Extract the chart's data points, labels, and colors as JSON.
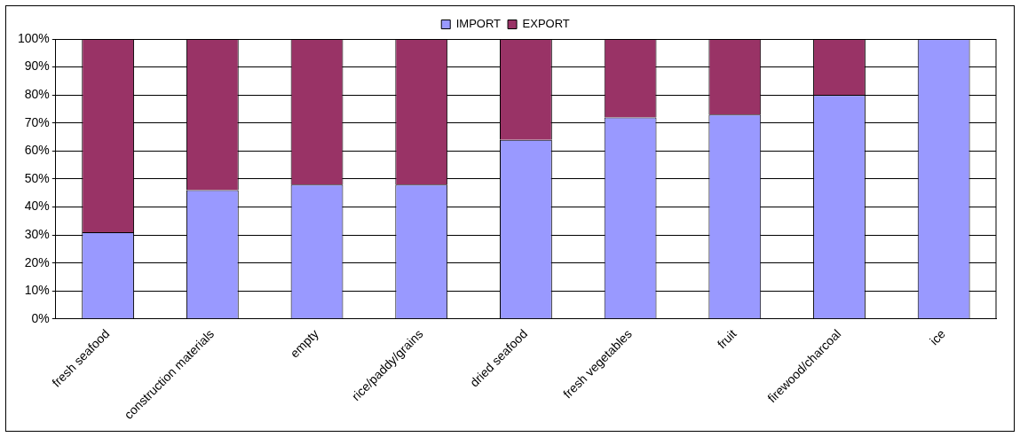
{
  "chart_data": {
    "type": "bar",
    "stacked": true,
    "categories": [
      "fresh seafood",
      "construction materials",
      "empty",
      "rice/paddy/grains",
      "dried seafood",
      "fresh vegetables",
      "fruit",
      "firewood/charcoal",
      "ice"
    ],
    "series": [
      {
        "name": "IMPORT",
        "color": "#9999ff",
        "values": [
          31,
          46,
          48,
          48,
          64,
          72,
          73,
          80,
          100
        ]
      },
      {
        "name": "EXPORT",
        "color": "#993366",
        "values": [
          69,
          54,
          52,
          52,
          36,
          28,
          27,
          20,
          0
        ]
      }
    ],
    "ylim": [
      0,
      100
    ],
    "yticks": [
      {
        "value": 0,
        "label": "0%"
      },
      {
        "value": 10,
        "label": "10%"
      },
      {
        "value": 20,
        "label": "20%"
      },
      {
        "value": 30,
        "label": "30%"
      },
      {
        "value": 40,
        "label": "40%"
      },
      {
        "value": 50,
        "label": "50%"
      },
      {
        "value": 60,
        "label": "60%"
      },
      {
        "value": 70,
        "label": "70%"
      },
      {
        "value": 80,
        "label": "80%"
      },
      {
        "value": 90,
        "label": "90%"
      },
      {
        "value": 100,
        "label": "100%"
      }
    ],
    "grid": "y",
    "legend": "top"
  }
}
